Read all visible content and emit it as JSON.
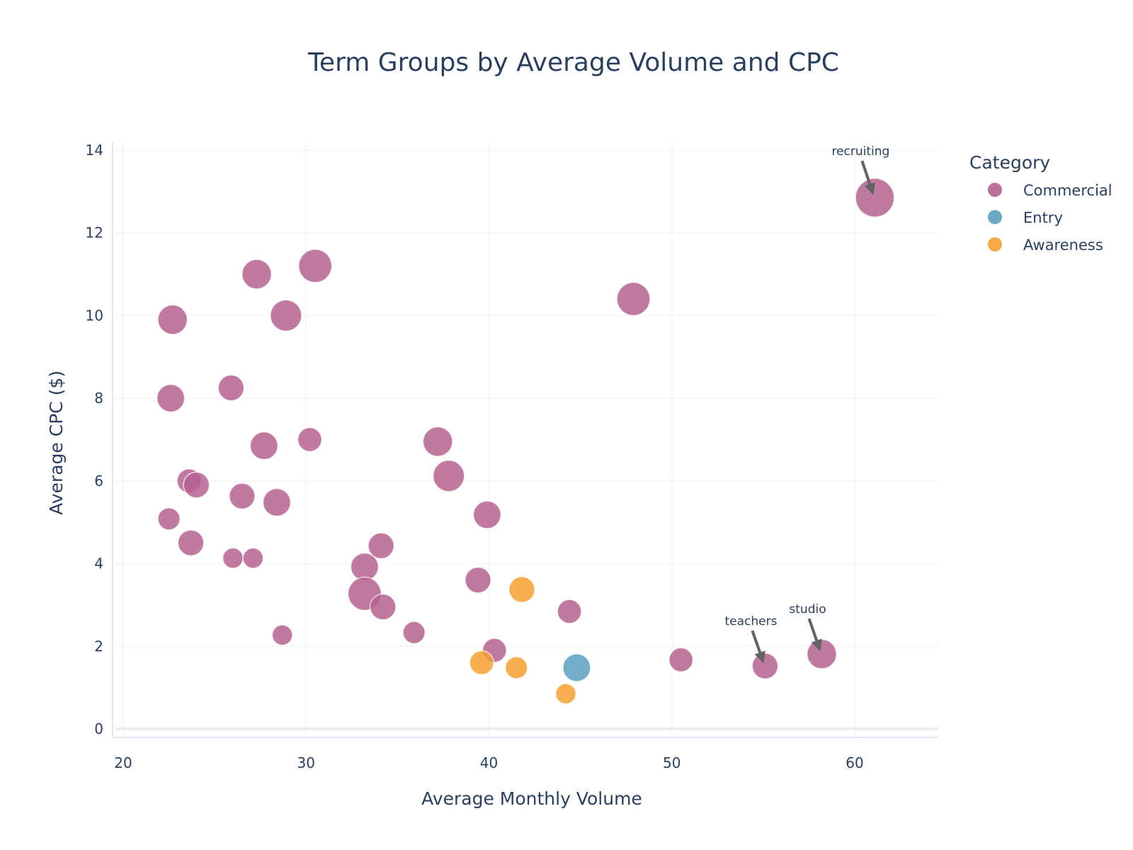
{
  "chart_data": {
    "type": "scatter",
    "title": "Term Groups by Average Volume and CPC",
    "xlabel": "Average Monthly Volume",
    "ylabel": "Average CPC ($)",
    "xlim": [
      19.5,
      64.5
    ],
    "ylim": [
      -0.3,
      14.2
    ],
    "xticks": [
      20,
      30,
      40,
      50,
      60
    ],
    "yticks": [
      0,
      2,
      4,
      6,
      8,
      10,
      12,
      14
    ],
    "grid": true,
    "legend": {
      "title": "Category",
      "placement": "top-right"
    },
    "series": [
      {
        "name": "Commercial",
        "color": "#b5628f",
        "points": [
          {
            "x": 22.7,
            "y": 9.9,
            "size": 8
          },
          {
            "x": 27.3,
            "y": 11.0,
            "size": 8
          },
          {
            "x": 30.5,
            "y": 11.2,
            "size": 9
          },
          {
            "x": 28.9,
            "y": 10.0,
            "size": 8.5
          },
          {
            "x": 47.9,
            "y": 10.4,
            "size": 9
          },
          {
            "x": 61.1,
            "y": 12.85,
            "size": 10.5,
            "label": "recruiting"
          },
          {
            "x": 22.6,
            "y": 8.0,
            "size": 7.5
          },
          {
            "x": 25.9,
            "y": 8.25,
            "size": 7
          },
          {
            "x": 27.7,
            "y": 6.85,
            "size": 7.5
          },
          {
            "x": 30.2,
            "y": 7.0,
            "size": 6.5
          },
          {
            "x": 37.2,
            "y": 6.95,
            "size": 8
          },
          {
            "x": 37.8,
            "y": 6.12,
            "size": 8.5
          },
          {
            "x": 23.6,
            "y": 6.0,
            "size": 6.5
          },
          {
            "x": 24.0,
            "y": 5.9,
            "size": 7
          },
          {
            "x": 26.5,
            "y": 5.63,
            "size": 7
          },
          {
            "x": 28.4,
            "y": 5.48,
            "size": 7.5
          },
          {
            "x": 39.9,
            "y": 5.18,
            "size": 7.5
          },
          {
            "x": 22.5,
            "y": 5.08,
            "size": 6
          },
          {
            "x": 23.7,
            "y": 4.5,
            "size": 7
          },
          {
            "x": 26.0,
            "y": 4.13,
            "size": 5.5
          },
          {
            "x": 27.1,
            "y": 4.13,
            "size": 5.5
          },
          {
            "x": 34.1,
            "y": 4.43,
            "size": 7
          },
          {
            "x": 33.2,
            "y": 3.92,
            "size": 7.5
          },
          {
            "x": 33.2,
            "y": 3.27,
            "size": 9
          },
          {
            "x": 34.2,
            "y": 2.95,
            "size": 7
          },
          {
            "x": 39.4,
            "y": 3.6,
            "size": 7
          },
          {
            "x": 44.4,
            "y": 2.84,
            "size": 6.5
          },
          {
            "x": 28.7,
            "y": 2.27,
            "size": 5.5
          },
          {
            "x": 35.9,
            "y": 2.33,
            "size": 6
          },
          {
            "x": 40.3,
            "y": 1.9,
            "size": 6.5
          },
          {
            "x": 50.5,
            "y": 1.67,
            "size": 6.5
          },
          {
            "x": 55.1,
            "y": 1.52,
            "size": 7,
            "label": "teachers"
          },
          {
            "x": 58.2,
            "y": 1.81,
            "size": 8,
            "label": "studio"
          }
        ]
      },
      {
        "name": "Entry",
        "color": "#5a9fbf",
        "points": [
          {
            "x": 44.8,
            "y": 1.48,
            "size": 7.5
          }
        ]
      },
      {
        "name": "Awareness",
        "color": "#f5a030",
        "points": [
          {
            "x": 41.8,
            "y": 3.37,
            "size": 7
          },
          {
            "x": 39.6,
            "y": 1.6,
            "size": 6.5
          },
          {
            "x": 41.5,
            "y": 1.48,
            "size": 6
          },
          {
            "x": 44.2,
            "y": 0.85,
            "size": 5.5
          }
        ]
      }
    ],
    "annotations": [
      {
        "text": "recruiting",
        "x": 61.1,
        "y": 12.85
      },
      {
        "text": "teachers",
        "x": 55.1,
        "y": 1.52
      },
      {
        "text": "studio",
        "x": 58.2,
        "y": 1.81
      }
    ]
  }
}
